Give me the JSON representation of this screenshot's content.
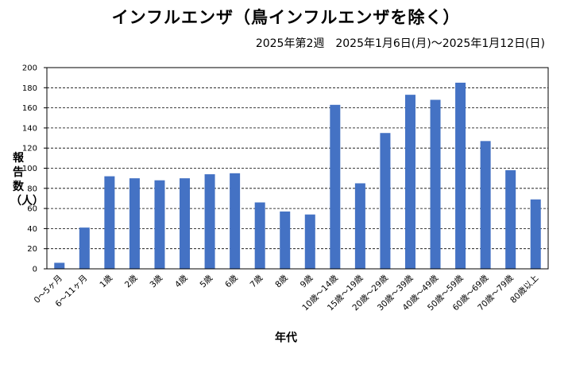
{
  "chart_data": {
    "type": "bar",
    "title": "インフルエンザ（鳥インフルエンザを除く）",
    "subtitle": "2025年第2週　2025年1月6日(月)～2025年1月12日(日)",
    "xlabel": "年代",
    "ylabel": "報告数（人）",
    "ylim": [
      0,
      200
    ],
    "yticks": [
      0,
      20,
      40,
      60,
      80,
      100,
      120,
      140,
      160,
      180,
      200
    ],
    "grid": true,
    "bar_color": "#4472c4",
    "categories": [
      "0～5ヶ月",
      "6～11ヶ月",
      "1歳",
      "2歳",
      "3歳",
      "4歳",
      "5歳",
      "6歳",
      "7歳",
      "8歳",
      "9歳",
      "10歳～14歳",
      "15歳～19歳",
      "20歳～29歳",
      "30歳～39歳",
      "40歳～49歳",
      "50歳～59歳",
      "60歳～69歳",
      "70歳～79歳",
      "80歳以上"
    ],
    "values": [
      6,
      41,
      92,
      90,
      88,
      90,
      94,
      95,
      66,
      57,
      54,
      163,
      85,
      135,
      173,
      168,
      185,
      127,
      98,
      69
    ]
  }
}
